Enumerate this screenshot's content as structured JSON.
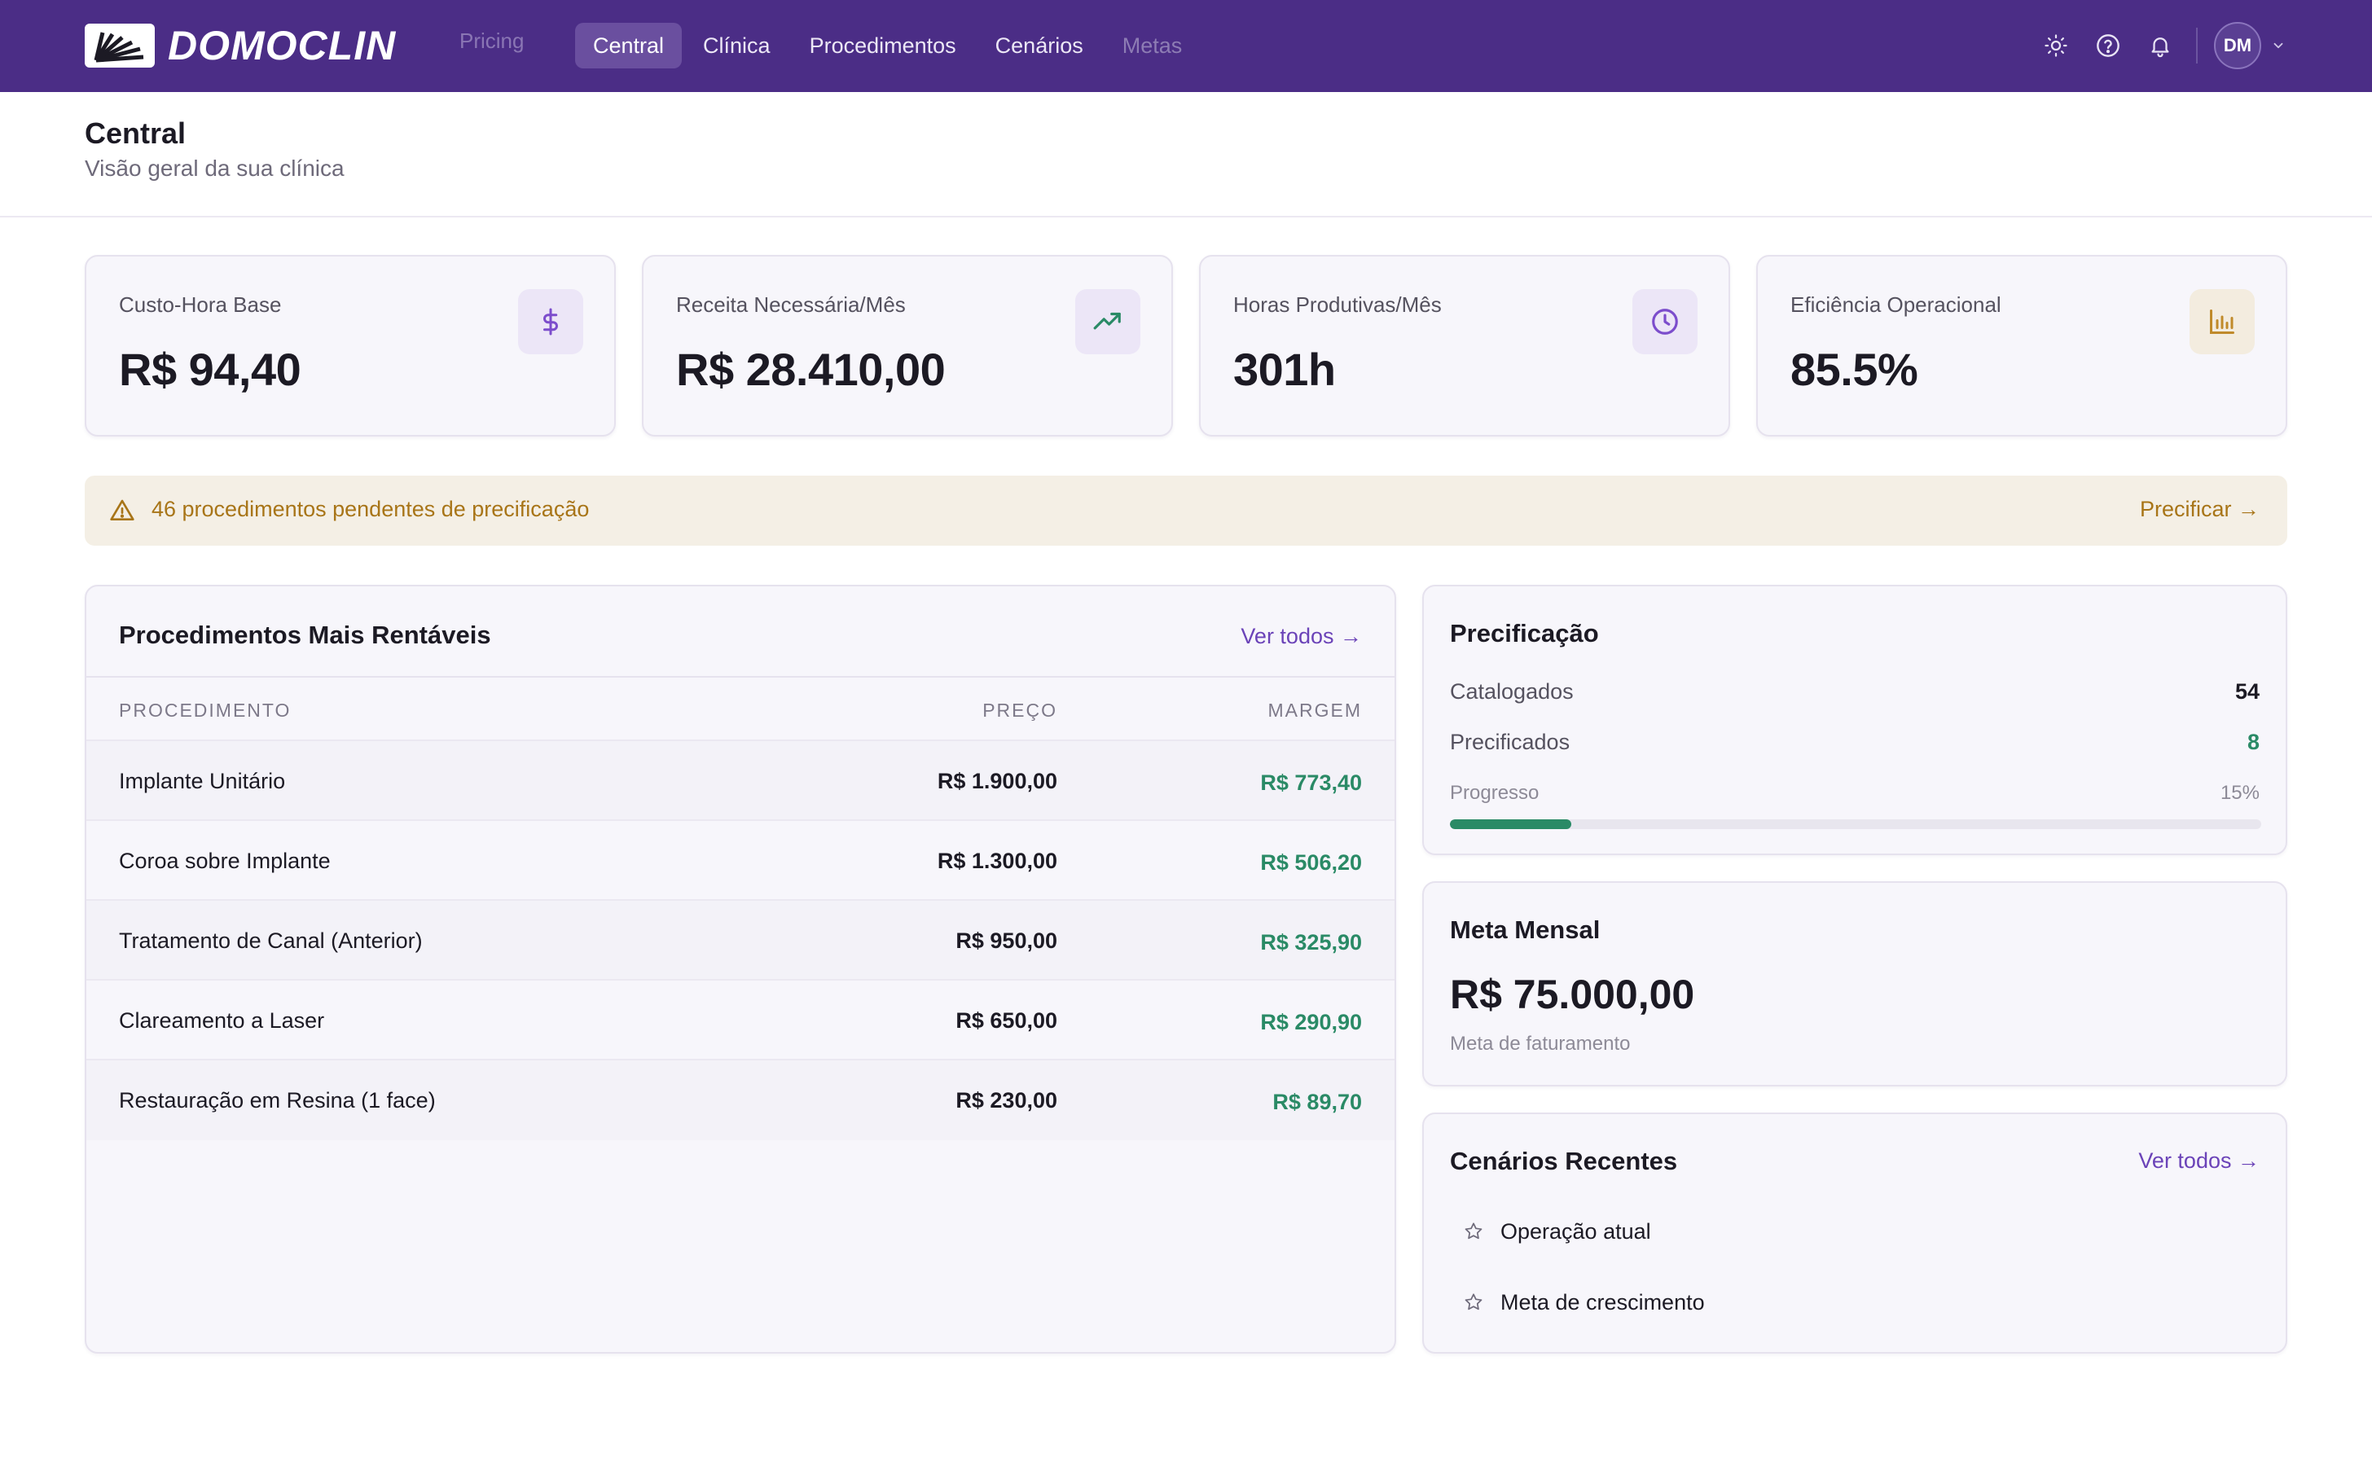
{
  "app": {
    "name": "DOMOCLIN",
    "product": "Pricing",
    "brand_color": "#4b2d86"
  },
  "nav": {
    "items": [
      {
        "label": "Central",
        "state": "active"
      },
      {
        "label": "Clínica",
        "state": "normal"
      },
      {
        "label": "Procedimentos",
        "state": "normal"
      },
      {
        "label": "Cenários",
        "state": "normal"
      },
      {
        "label": "Metas",
        "state": "disabled"
      }
    ]
  },
  "topbar": {
    "icons": [
      "sun-icon",
      "help-circle-icon",
      "bell-icon"
    ],
    "user_initials": "DM"
  },
  "header": {
    "title": "Central",
    "subtitle": "Visão geral da sua clínica"
  },
  "stats": [
    {
      "label": "Custo-Hora Base",
      "value": "R$ 94,40",
      "icon": "dollar-icon",
      "icon_color": "#7c4dcc"
    },
    {
      "label": "Receita Necessária/Mês",
      "value": "R$ 28.410,00",
      "icon": "trending-up-icon",
      "icon_color": "#2a8a66"
    },
    {
      "label": "Horas Produtivas/Mês",
      "value": "301h",
      "icon": "clock-icon",
      "icon_color": "#7c4dcc"
    },
    {
      "label": "Eficiência Operacional",
      "value": "85.5%",
      "icon": "bar-chart-icon",
      "icon_color": "#c08a2a"
    }
  ],
  "alert": {
    "text": "46 procedimentos pendentes de precificação",
    "action": "Precificar →",
    "color": "#a87518"
  },
  "procedures": {
    "title": "Procedimentos Mais Rentáveis",
    "view_all": "Ver todos →",
    "columns": [
      "PROCEDIMENTO",
      "PREÇO",
      "MARGEM"
    ],
    "rows": [
      {
        "name": "Implante Unitário",
        "price": "R$ 1.900,00",
        "margin": "R$ 773,40"
      },
      {
        "name": "Coroa sobre Implante",
        "price": "R$ 1.300,00",
        "margin": "R$ 506,20"
      },
      {
        "name": "Tratamento de Canal (Anterior)",
        "price": "R$ 950,00",
        "margin": "R$ 325,90"
      },
      {
        "name": "Clareamento a Laser",
        "price": "R$ 650,00",
        "margin": "R$ 290,90"
      },
      {
        "name": "Restauração em Resina (1 face)",
        "price": "R$ 230,00",
        "margin": "R$ 89,70"
      }
    ]
  },
  "pricing": {
    "title": "Precificação",
    "catalogued_label": "Catalogados",
    "catalogued_value": "54",
    "priced_label": "Precificados",
    "priced_value": "8",
    "progress_label": "Progresso",
    "progress_text": "15%",
    "progress_fraction": 0.15
  },
  "goal": {
    "title": "Meta Mensal",
    "value": "R$ 75.000,00",
    "subtitle": "Meta de faturamento"
  },
  "scenarios": {
    "title": "Cenários Recentes",
    "view_all": "Ver todos →",
    "items": [
      "Operação atual",
      "Meta de crescimento"
    ]
  }
}
